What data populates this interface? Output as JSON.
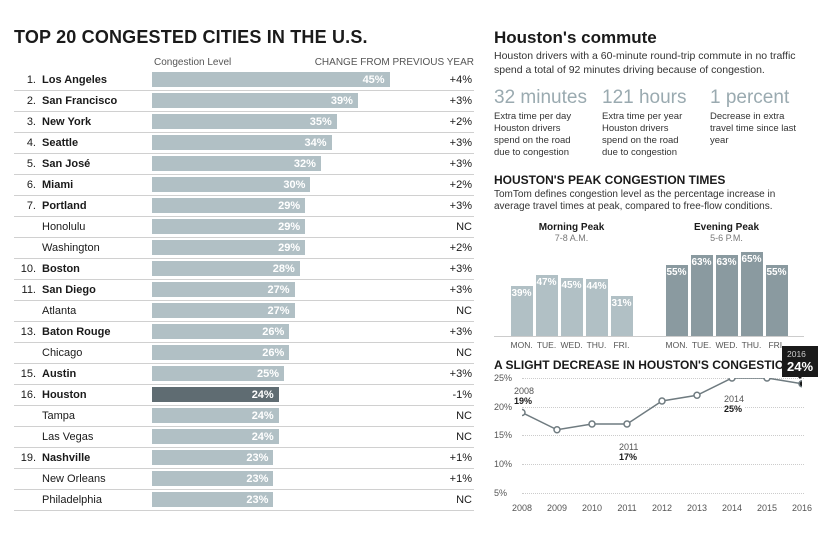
{
  "left": {
    "title": "TOP 20 CONGESTED CITIES IN THE U.S.",
    "col_congestion": "Congestion Level",
    "col_change": "CHANGE FROM PREVIOUS YEAR",
    "bar_max_pct": 50,
    "bar_color_normal": "#b1c0c5",
    "bar_color_highlight": "#5f6c72",
    "rows": [
      {
        "rank": "1.",
        "city": "Los Angeles",
        "pct": 45,
        "chg": "+4%",
        "bold": true,
        "hl": false
      },
      {
        "rank": "2.",
        "city": "San Francisco",
        "pct": 39,
        "chg": "+3%",
        "bold": true,
        "hl": false
      },
      {
        "rank": "3.",
        "city": "New York",
        "pct": 35,
        "chg": "+2%",
        "bold": true,
        "hl": false
      },
      {
        "rank": "4.",
        "city": "Seattle",
        "pct": 34,
        "chg": "+3%",
        "bold": true,
        "hl": false
      },
      {
        "rank": "5.",
        "city": "San José",
        "pct": 32,
        "chg": "+3%",
        "bold": true,
        "hl": false
      },
      {
        "rank": "6.",
        "city": "Miami",
        "pct": 30,
        "chg": "+2%",
        "bold": true,
        "hl": false
      },
      {
        "rank": "7.",
        "city": "Portland",
        "pct": 29,
        "chg": "+3%",
        "bold": true,
        "hl": false
      },
      {
        "rank": "",
        "city": "Honolulu",
        "pct": 29,
        "chg": "NC",
        "bold": false,
        "hl": false
      },
      {
        "rank": "",
        "city": "Washington",
        "pct": 29,
        "chg": "+2%",
        "bold": false,
        "hl": false
      },
      {
        "rank": "10.",
        "city": "Boston",
        "pct": 28,
        "chg": "+3%",
        "bold": true,
        "hl": false
      },
      {
        "rank": "11.",
        "city": "San Diego",
        "pct": 27,
        "chg": "+3%",
        "bold": true,
        "hl": false
      },
      {
        "rank": "",
        "city": "Atlanta",
        "pct": 27,
        "chg": "NC",
        "bold": false,
        "hl": false
      },
      {
        "rank": "13.",
        "city": "Baton Rouge",
        "pct": 26,
        "chg": "+3%",
        "bold": true,
        "hl": false
      },
      {
        "rank": "",
        "city": "Chicago",
        "pct": 26,
        "chg": "NC",
        "bold": false,
        "hl": false
      },
      {
        "rank": "15.",
        "city": "Austin",
        "pct": 25,
        "chg": "+3%",
        "bold": true,
        "hl": false
      },
      {
        "rank": "16.",
        "city": "Houston",
        "pct": 24,
        "chg": "-1%",
        "bold": true,
        "hl": true
      },
      {
        "rank": "",
        "city": "Tampa",
        "pct": 24,
        "chg": "NC",
        "bold": false,
        "hl": false
      },
      {
        "rank": "",
        "city": "Las Vegas",
        "pct": 24,
        "chg": "NC",
        "bold": false,
        "hl": false
      },
      {
        "rank": "19.",
        "city": "Nashville",
        "pct": 23,
        "chg": "+1%",
        "bold": true,
        "hl": false
      },
      {
        "rank": "",
        "city": "New Orleans",
        "pct": 23,
        "chg": "+1%",
        "bold": false,
        "hl": false
      },
      {
        "rank": "",
        "city": "Philadelphia",
        "pct": 23,
        "chg": "NC",
        "bold": false,
        "hl": false
      }
    ]
  },
  "right": {
    "h2": "Houston's commute",
    "intro": "Houston drivers with a 60-minute round-trip commute in no traffic spend a total of 92 minutes driving because of congestion.",
    "stats": [
      {
        "big": "32 minutes",
        "lbl": "Extra time per day Houston drivers spend on the road due to congestion"
      },
      {
        "big": "121 hours",
        "lbl": "Extra time per year Houston drivers spend on the road due to congestion"
      },
      {
        "big": "1 percent",
        "lbl": "Decrease in extra travel time since last year"
      }
    ],
    "peak": {
      "title": "HOUSTON'S PEAK CONGESTION TIMES",
      "sub": "TomTom defines congestion level as the percentage increase in average travel times at peak, compared to free-flow conditions.",
      "max": 70,
      "color_morning": "#b1c0c5",
      "color_evening": "#8a9aa0",
      "morning_label": "Morning Peak",
      "morning_time": "7-8 A.M.",
      "evening_label": "Evening Peak",
      "evening_time": "5-6 P.M.",
      "days": [
        "MON.",
        "TUE.",
        "WED.",
        "THU.",
        "FRI."
      ],
      "morning": [
        39,
        47,
        45,
        44,
        31
      ],
      "evening": [
        55,
        63,
        63,
        65,
        55
      ]
    },
    "trend": {
      "title": "A SLIGHT DECREASE IN HOUSTON'S CONGESTION",
      "ymax": 25,
      "ymin": 5,
      "yticks": [
        5,
        10,
        15,
        20,
        25
      ],
      "years": [
        2008,
        2009,
        2010,
        2011,
        2012,
        2013,
        2014,
        2015,
        2016
      ],
      "values": [
        19,
        16,
        17,
        17,
        21,
        22,
        25,
        25,
        24
      ],
      "line_color": "#6f7b80",
      "dot_color": "#6f7b80",
      "dot_hl_color": "#1a1a1a",
      "callouts": [
        {
          "year": "2008",
          "val": "19%",
          "xi": 0,
          "dy": -26
        },
        {
          "year": "2011",
          "val": "17%",
          "xi": 3,
          "dy": 18
        },
        {
          "year": "2014",
          "val": "25%",
          "xi": 6,
          "dy": 16
        }
      ],
      "callout2016": {
        "year": "2016",
        "val": "24%",
        "xi": 8
      }
    }
  }
}
